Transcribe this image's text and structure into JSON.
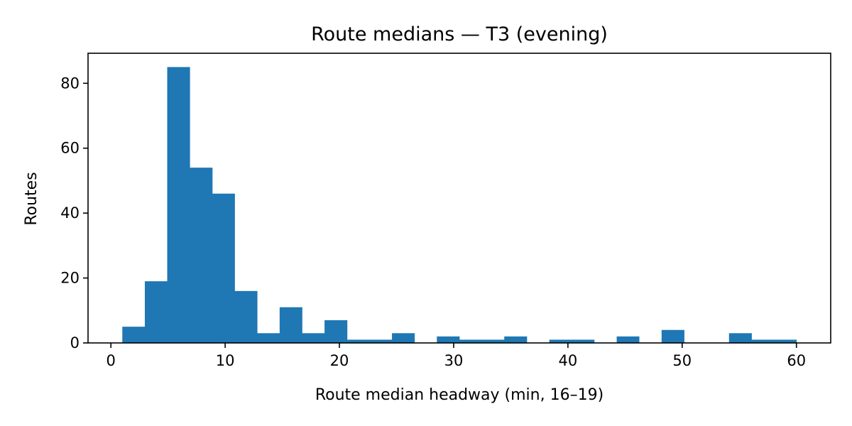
{
  "chart_data": {
    "type": "bar",
    "title": "Route medians — T3 (evening)",
    "xlabel": "Route median headway (min, 16–19)",
    "ylabel": "Routes",
    "xlim": [
      -2.0,
      63.0
    ],
    "ylim": [
      0,
      89.25
    ],
    "xticks": [
      0,
      10,
      20,
      30,
      40,
      50,
      60
    ],
    "yticks": [
      0,
      20,
      40,
      60,
      80
    ],
    "bins": [
      {
        "x0": 1.0,
        "x1": 2.97,
        "count": 5
      },
      {
        "x0": 2.97,
        "x1": 4.93,
        "count": 19
      },
      {
        "x0": 4.93,
        "x1": 6.9,
        "count": 85
      },
      {
        "x0": 6.9,
        "x1": 8.87,
        "count": 54
      },
      {
        "x0": 8.87,
        "x1": 10.83,
        "count": 46
      },
      {
        "x0": 10.83,
        "x1": 12.8,
        "count": 16
      },
      {
        "x0": 12.8,
        "x1": 14.77,
        "count": 3
      },
      {
        "x0": 14.77,
        "x1": 16.73,
        "count": 11
      },
      {
        "x0": 16.73,
        "x1": 18.7,
        "count": 3
      },
      {
        "x0": 18.7,
        "x1": 20.67,
        "count": 7
      },
      {
        "x0": 20.67,
        "x1": 22.63,
        "count": 1
      },
      {
        "x0": 22.63,
        "x1": 24.6,
        "count": 1
      },
      {
        "x0": 24.6,
        "x1": 26.57,
        "count": 3
      },
      {
        "x0": 26.57,
        "x1": 28.53,
        "count": 0
      },
      {
        "x0": 28.53,
        "x1": 30.5,
        "count": 2
      },
      {
        "x0": 30.5,
        "x1": 32.47,
        "count": 1
      },
      {
        "x0": 32.47,
        "x1": 34.43,
        "count": 1
      },
      {
        "x0": 34.43,
        "x1": 36.4,
        "count": 2
      },
      {
        "x0": 36.4,
        "x1": 38.37,
        "count": 0
      },
      {
        "x0": 38.37,
        "x1": 40.33,
        "count": 1
      },
      {
        "x0": 40.33,
        "x1": 42.3,
        "count": 1
      },
      {
        "x0": 42.3,
        "x1": 44.27,
        "count": 0
      },
      {
        "x0": 44.27,
        "x1": 46.23,
        "count": 2
      },
      {
        "x0": 46.23,
        "x1": 48.2,
        "count": 0
      },
      {
        "x0": 48.2,
        "x1": 50.17,
        "count": 4
      },
      {
        "x0": 50.17,
        "x1": 52.13,
        "count": 0
      },
      {
        "x0": 52.13,
        "x1": 54.1,
        "count": 0
      },
      {
        "x0": 54.1,
        "x1": 56.07,
        "count": 3
      },
      {
        "x0": 56.07,
        "x1": 58.03,
        "count": 1
      },
      {
        "x0": 58.03,
        "x1": 60.0,
        "count": 1
      }
    ],
    "bar_color": "#1f77b4",
    "grid": false,
    "legend": "none"
  }
}
